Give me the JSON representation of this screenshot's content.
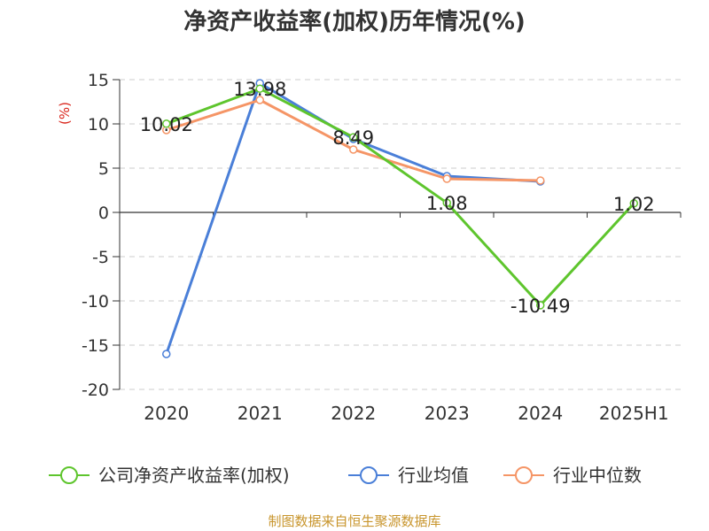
{
  "chart_data": {
    "type": "line",
    "title": "净资产收益率(加权)历年情况(%)",
    "ylabel": "(%)",
    "xlabel": "",
    "categories": [
      "2020",
      "2021",
      "2022",
      "2023",
      "2024",
      "2025H1"
    ],
    "ylim": [
      -20,
      15
    ],
    "yticks": [
      15,
      10,
      5,
      0,
      -5,
      -10,
      -15,
      -20
    ],
    "ytick_labels": [
      "15",
      "10",
      "5",
      "0",
      "-5",
      "-10",
      "-15",
      "-20"
    ],
    "grid": true,
    "legend_position": "bottom",
    "series": [
      {
        "name": "公司净资产收益率(加权)",
        "color": "#5ec52d",
        "values": [
          10.02,
          13.98,
          8.49,
          1.08,
          -10.49,
          1.02
        ],
        "data_labels": [
          "10.02",
          "13.98",
          "8.49",
          "1.08",
          "-10.49",
          "1.02"
        ]
      },
      {
        "name": "行业均值",
        "color": "#4a7fd8",
        "values": [
          -16.0,
          14.6,
          8.3,
          4.1,
          3.5,
          null
        ]
      },
      {
        "name": "行业中位数",
        "color": "#f59566",
        "values": [
          9.3,
          12.7,
          7.1,
          3.8,
          3.6,
          null
        ]
      }
    ],
    "source": "制图数据来自恒生聚源数据库",
    "unit_color": "#d9261c",
    "source_color": "#c8952c"
  }
}
